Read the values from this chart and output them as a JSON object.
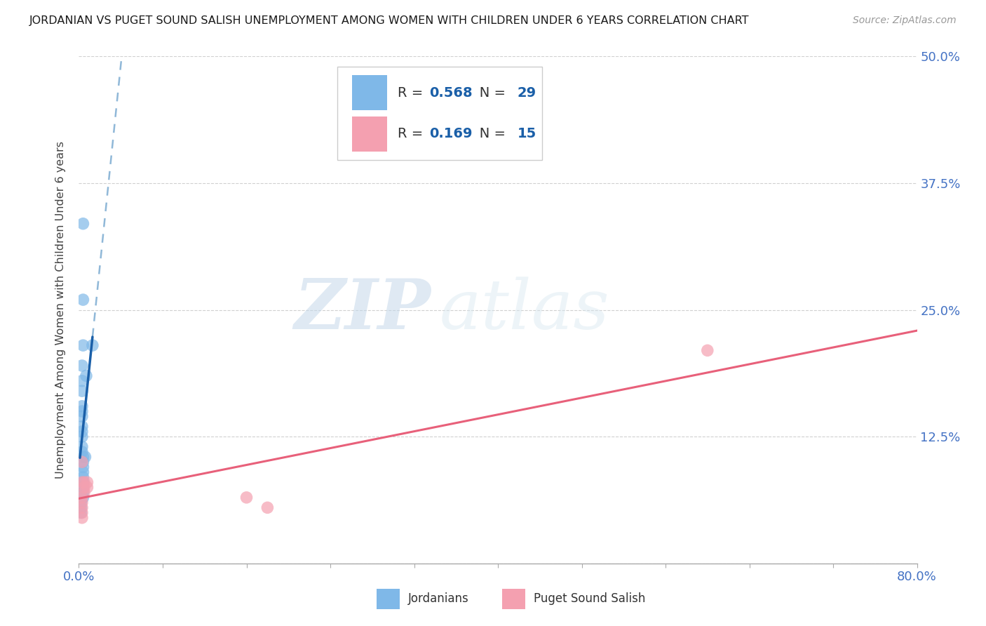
{
  "title": "JORDANIAN VS PUGET SOUND SALISH UNEMPLOYMENT AMONG WOMEN WITH CHILDREN UNDER 6 YEARS CORRELATION CHART",
  "source": "Source: ZipAtlas.com",
  "ylabel": "Unemployment Among Women with Children Under 6 years",
  "xlim": [
    0,
    0.8
  ],
  "ylim": [
    0,
    0.5
  ],
  "xticks": [
    0.0,
    0.08,
    0.16,
    0.24,
    0.32,
    0.4,
    0.48,
    0.56,
    0.64,
    0.72,
    0.8
  ],
  "yticks": [
    0.0,
    0.125,
    0.25,
    0.375,
    0.5
  ],
  "ytick_labels_right": [
    "",
    "12.5%",
    "25.0%",
    "37.5%",
    "50.0%"
  ],
  "background_color": "#ffffff",
  "grid_color": "#d0d0d0",
  "blue_color": "#7fb8e8",
  "pink_color": "#f4a0b0",
  "blue_line_color": "#1a5fa8",
  "blue_dash_color": "#90b8d8",
  "pink_line_color": "#e8607a",
  "blue_R": 0.568,
  "blue_N": 29,
  "pink_R": 0.169,
  "pink_N": 15,
  "watermark_zip": "ZIP",
  "watermark_atlas": "atlas",
  "jordanians_x": [
    0.004,
    0.004,
    0.004,
    0.003,
    0.003,
    0.003,
    0.003,
    0.003,
    0.003,
    0.003,
    0.003,
    0.003,
    0.003,
    0.003,
    0.004,
    0.004,
    0.004,
    0.004,
    0.004,
    0.004,
    0.004,
    0.004,
    0.004,
    0.006,
    0.007,
    0.002,
    0.002,
    0.002,
    0.013
  ],
  "jordanians_y": [
    0.335,
    0.26,
    0.215,
    0.195,
    0.18,
    0.17,
    0.155,
    0.15,
    0.145,
    0.135,
    0.13,
    0.125,
    0.115,
    0.11,
    0.105,
    0.1,
    0.095,
    0.09,
    0.085,
    0.08,
    0.075,
    0.07,
    0.065,
    0.105,
    0.185,
    0.06,
    0.055,
    0.05,
    0.215
  ],
  "salish_x": [
    0.003,
    0.003,
    0.003,
    0.003,
    0.003,
    0.003,
    0.003,
    0.005,
    0.005,
    0.005,
    0.008,
    0.008,
    0.16,
    0.18,
    0.6
  ],
  "salish_y": [
    0.1,
    0.08,
    0.065,
    0.06,
    0.055,
    0.05,
    0.045,
    0.08,
    0.075,
    0.07,
    0.08,
    0.075,
    0.065,
    0.055,
    0.21
  ],
  "legend_labels": [
    "Jordanians",
    "Puget Sound Salish"
  ],
  "pink_intercept": 0.118,
  "pink_slope": 0.145,
  "blue_intercept": 0.04,
  "blue_slope": 14.0
}
